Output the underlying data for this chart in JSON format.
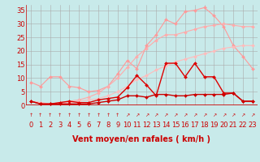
{
  "background_color": "#c8eaea",
  "grid_color": "#aaaaaa",
  "xlabel": "Vent moyen/en rafales ( km/h )",
  "xlabel_color": "#cc0000",
  "xlabel_fontsize": 7,
  "xticks": [
    0,
    1,
    2,
    3,
    4,
    5,
    6,
    7,
    8,
    9,
    10,
    11,
    12,
    13,
    14,
    15,
    16,
    17,
    18,
    19,
    20,
    21,
    22,
    23
  ],
  "yticks": [
    0,
    5,
    10,
    15,
    20,
    25,
    30,
    35
  ],
  "xlim": [
    -0.5,
    23.5
  ],
  "ylim": [
    0,
    37
  ],
  "tick_color": "#cc0000",
  "tick_fontsize": 6,
  "lines": [
    {
      "x": [
        0,
        1,
        2,
        3,
        4,
        5,
        6,
        7,
        8,
        9,
        10,
        11,
        12,
        13,
        14,
        15,
        16,
        17,
        18,
        19,
        20,
        21,
        22,
        23
      ],
      "y": [
        8.5,
        7,
        10.5,
        10.5,
        7,
        6.5,
        5,
        5.5,
        7,
        11.5,
        16.5,
        13.5,
        22,
        26,
        31.5,
        30,
        34.5,
        35,
        36,
        33,
        29,
        22,
        18,
        13.5
      ],
      "color": "#ff9999",
      "lw": 0.8,
      "markersize": 2,
      "zorder": 2
    },
    {
      "x": [
        0,
        1,
        2,
        3,
        4,
        5,
        6,
        7,
        8,
        9,
        10,
        11,
        12,
        13,
        14,
        15,
        16,
        17,
        18,
        19,
        20,
        21,
        22,
        23
      ],
      "y": [
        1.5,
        1,
        0.5,
        1,
        1.5,
        2,
        3,
        4.5,
        7,
        10,
        14,
        18,
        21,
        24,
        26,
        26,
        27,
        28,
        29,
        29.5,
        30,
        29.5,
        29,
        29
      ],
      "color": "#ffaaaa",
      "lw": 0.8,
      "markersize": 2,
      "zorder": 2
    },
    {
      "x": [
        0,
        1,
        2,
        3,
        4,
        5,
        6,
        7,
        8,
        9,
        10,
        11,
        12,
        13,
        14,
        15,
        16,
        17,
        18,
        19,
        20,
        21,
        22,
        23
      ],
      "y": [
        1.5,
        1,
        0.5,
        0.5,
        1,
        1.5,
        2,
        2.5,
        3.5,
        5,
        7,
        9.5,
        11,
        13,
        14.5,
        16,
        17,
        18,
        19,
        20,
        21,
        21.5,
        22,
        22
      ],
      "color": "#ffbbbb",
      "lw": 0.8,
      "markersize": 2,
      "zorder": 2
    },
    {
      "x": [
        0,
        1,
        2,
        3,
        4,
        5,
        6,
        7,
        8,
        9,
        10,
        11,
        12,
        13,
        14,
        15,
        16,
        17,
        18,
        19,
        20,
        21,
        22,
        23
      ],
      "y": [
        1.5,
        0.5,
        0.5,
        1,
        1.5,
        1,
        1,
        2,
        2.5,
        3,
        6.5,
        11,
        7.5,
        3.5,
        15.5,
        15.5,
        10.5,
        15.5,
        10.5,
        10.5,
        4.5,
        4.5,
        1.5,
        1.5
      ],
      "color": "#dd0000",
      "lw": 1.0,
      "markersize": 2,
      "zorder": 3
    },
    {
      "x": [
        0,
        1,
        2,
        3,
        4,
        5,
        6,
        7,
        8,
        9,
        10,
        11,
        12,
        13,
        14,
        15,
        16,
        17,
        18,
        19,
        20,
        21,
        22,
        23
      ],
      "y": [
        1.5,
        0.5,
        0.5,
        0.5,
        0.5,
        0.5,
        0.5,
        1,
        1.5,
        2,
        3.5,
        3.5,
        3,
        4,
        4,
        3.5,
        3.5,
        4,
        4,
        4,
        4,
        4.5,
        1.5,
        1.5
      ],
      "color": "#cc0000",
      "lw": 1.0,
      "markersize": 2,
      "zorder": 3
    }
  ]
}
